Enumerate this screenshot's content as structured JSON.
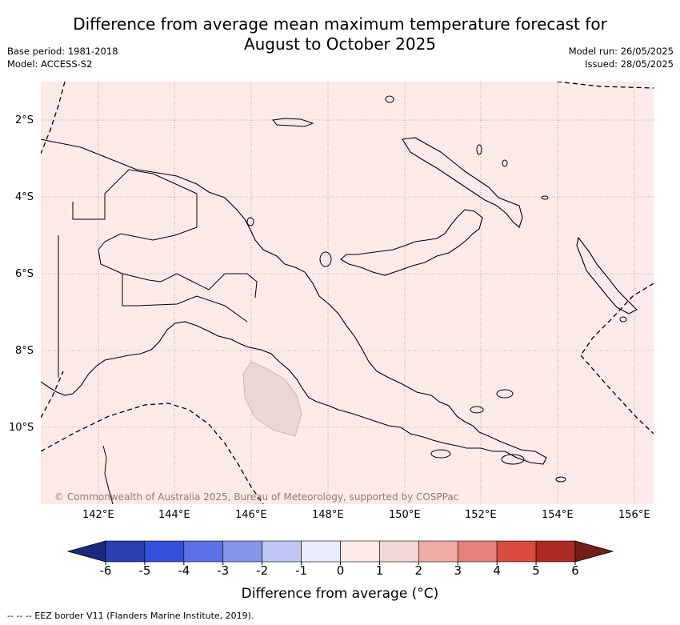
{
  "title_line1": "Difference from average mean maximum temperature forecast for",
  "title_line2": "August to October 2025",
  "meta": {
    "base_period": "Base period: 1981-2018",
    "model": "Model: ACCESS-S2",
    "model_run": "Model run: 26/05/2025",
    "issued": "Issued: 28/05/2025"
  },
  "map": {
    "lon_ticks": [
      "142°E",
      "144°E",
      "146°E",
      "148°E",
      "150°E",
      "152°E",
      "154°E",
      "156°E"
    ],
    "lat_ticks": [
      "2°S",
      "4°S",
      "6°S",
      "8°S",
      "10°S"
    ],
    "background_color": "#fbeae8",
    "watermark": "© Commonwealth of Australia 2025, Bureau of Meteorology, supported by COSPPac"
  },
  "colorbar": {
    "tick_labels": [
      "-6",
      "-5",
      "-4",
      "-3",
      "-2",
      "-1",
      "0",
      "1",
      "2",
      "3",
      "4",
      "5",
      "6"
    ],
    "colors": [
      "#2a3fb0",
      "#3550dd",
      "#5a72e6",
      "#8796eb",
      "#bfc6f3",
      "#e8ebfa",
      "#fbeae8",
      "#f0d7d5",
      "#efaca6",
      "#e6817a",
      "#d94a3e",
      "#ad2a22"
    ],
    "extend_low_color": "#1b2a80",
    "extend_high_color": "#741e19",
    "label": "Difference from average (°C)"
  },
  "footnote": "--  --  -- EEZ border V11 (Flanders Marine Institute, 2019)."
}
